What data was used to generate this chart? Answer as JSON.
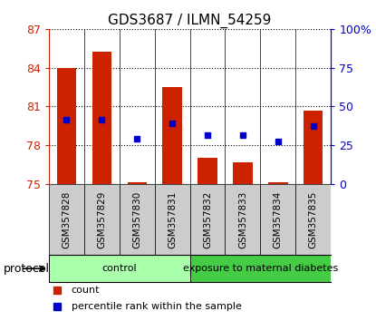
{
  "title": "GDS3687 / ILMN_54259",
  "categories": [
    "GSM357828",
    "GSM357829",
    "GSM357830",
    "GSM357831",
    "GSM357832",
    "GSM357833",
    "GSM357834",
    "GSM357835"
  ],
  "bar_values": [
    84.0,
    85.2,
    75.12,
    82.5,
    77.0,
    76.7,
    75.12,
    80.7
  ],
  "bar_bottom": 75.0,
  "blue_values": [
    80.0,
    80.0,
    78.5,
    79.7,
    78.75,
    78.75,
    78.3,
    79.5
  ],
  "bar_color": "#cc2200",
  "blue_color": "#0000cc",
  "left_ylim": [
    75,
    87
  ],
  "left_yticks": [
    75,
    78,
    81,
    84,
    87
  ],
  "right_ylim": [
    0,
    100
  ],
  "right_yticks": [
    0,
    25,
    50,
    75,
    100
  ],
  "right_yticklabels": [
    "0",
    "25",
    "50",
    "75",
    "100%"
  ],
  "protocol_groups": [
    {
      "label": "control",
      "start": 0,
      "end": 4,
      "color": "#aaffaa"
    },
    {
      "label": "exposure to maternal diabetes",
      "start": 4,
      "end": 8,
      "color": "#44cc44"
    }
  ],
  "legend_items": [
    {
      "label": "count",
      "color": "#cc2200"
    },
    {
      "label": "percentile rank within the sample",
      "color": "#0000cc"
    }
  ],
  "protocol_label": "protocol",
  "left_axis_color": "#cc2200",
  "right_axis_color": "#0000cc",
  "sample_box_color": "#cccccc",
  "figsize": [
    4.15,
    3.54
  ],
  "dpi": 100
}
